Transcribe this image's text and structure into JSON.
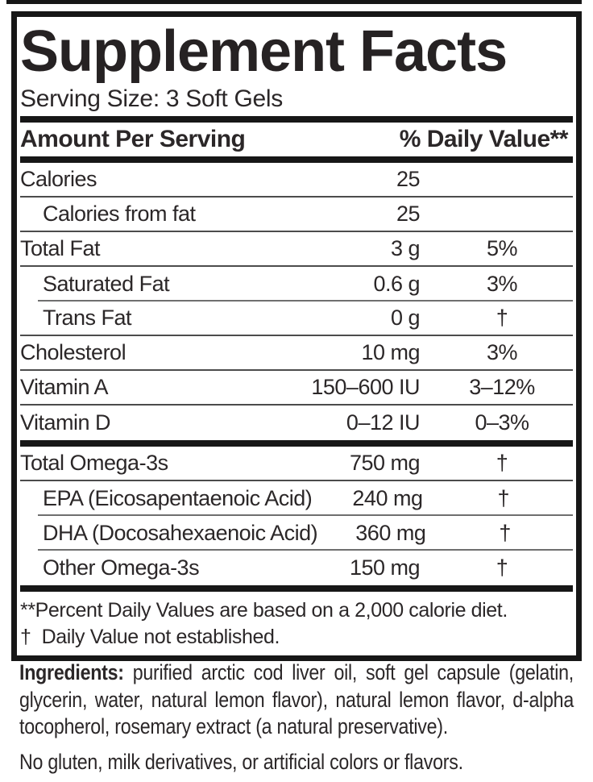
{
  "panel": {
    "title": "Supplement Facts",
    "serving_size": "Serving Size: 3 Soft Gels",
    "columns": {
      "amount_header": "Amount Per Serving",
      "dv_header": "% Daily Value**"
    },
    "rows": [
      {
        "name": "Calories",
        "amount": "25",
        "dv": ""
      },
      {
        "name": "Calories from fat",
        "amount": "25",
        "dv": ""
      },
      {
        "name": "Total Fat",
        "amount": "3 g",
        "dv": "5%"
      },
      {
        "name": "Saturated Fat",
        "amount": "0.6 g",
        "dv": "3%"
      },
      {
        "name": "Trans Fat",
        "amount": "0 g",
        "dv": "†"
      },
      {
        "name": "Cholesterol",
        "amount": "10 mg",
        "dv": "3%"
      },
      {
        "name": "Vitamin A",
        "amount": "150–600 IU",
        "dv": "3–12%"
      },
      {
        "name": "Vitamin D",
        "amount": "0–12 IU",
        "dv": "0–3%"
      }
    ],
    "omega_rows": [
      {
        "name": "Total Omega-3s",
        "amount": "750 mg",
        "dv": "†"
      },
      {
        "name": "EPA (Eicosapentaenoic Acid)",
        "amount": "240 mg",
        "dv": "†"
      },
      {
        "name": "DHA (Docosahexaenoic Acid)",
        "amount": "360 mg",
        "dv": "†"
      },
      {
        "name": "Other Omega-3s",
        "amount": "150 mg",
        "dv": "†"
      }
    ],
    "footnotes": {
      "line1": "**Percent Daily Values are based on a 2,000 calorie diet.",
      "line2": "†  Daily Value not established."
    }
  },
  "details": {
    "ingredients_label": "Ingredients:",
    "ingredients_text": "purified arctic cod liver oil, soft gel capsule (gelatin, glycerin, water, natural lemon flavor), natural lemon flavor, d-alpha tocopherol, rosemary extract (a natural preservative).",
    "allergen_note": "No gluten, milk derivatives, or artificial colors or flavors."
  },
  "colors": {
    "text": "#2b2728",
    "thick_bar": "#171717",
    "separator": "#4c4c4c",
    "separator_light": "#6f6f6f",
    "background": "#ffffff"
  }
}
